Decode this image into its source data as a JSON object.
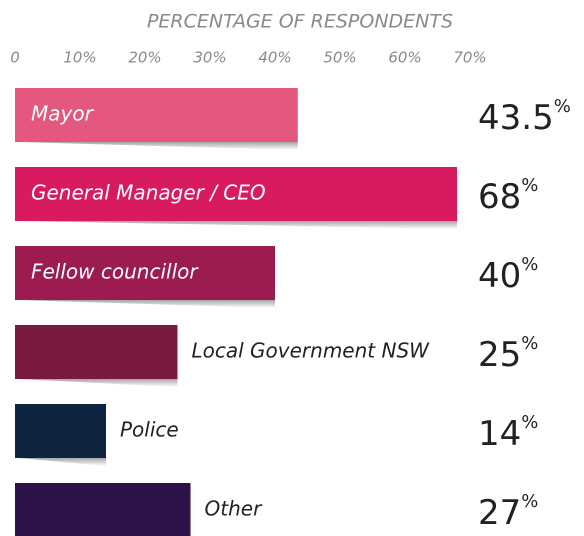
{
  "chart_data": {
    "type": "bar",
    "orientation": "horizontal",
    "title": "PERCENTAGE OF RESPONDENTS",
    "categories": [
      "Mayor",
      "General Manager / CEO",
      "Fellow councillor",
      "Local Government NSW",
      "Police",
      "Other"
    ],
    "values": [
      43.5,
      68,
      40,
      25,
      14,
      27
    ],
    "value_labels": [
      "43.5%",
      "68%",
      "40%",
      "25%",
      "14%",
      "27%"
    ],
    "colors": [
      "#e4577e",
      "#d81b60",
      "#9c1b50",
      "#7a1a3e",
      "#0d2340",
      "#2c1248"
    ],
    "xlim": [
      0,
      70
    ],
    "xticks": [
      0,
      {
        "value": 10,
        "label": "10%"
      },
      {
        "value": 20,
        "label": "20%"
      },
      {
        "value": 30,
        "label": "30%"
      },
      {
        "value": 40,
        "label": "40%"
      },
      {
        "value": 50,
        "label": "50%"
      },
      {
        "value": 60,
        "label": "60%"
      },
      {
        "value": 70,
        "label": "70%"
      }
    ],
    "grid": false
  }
}
